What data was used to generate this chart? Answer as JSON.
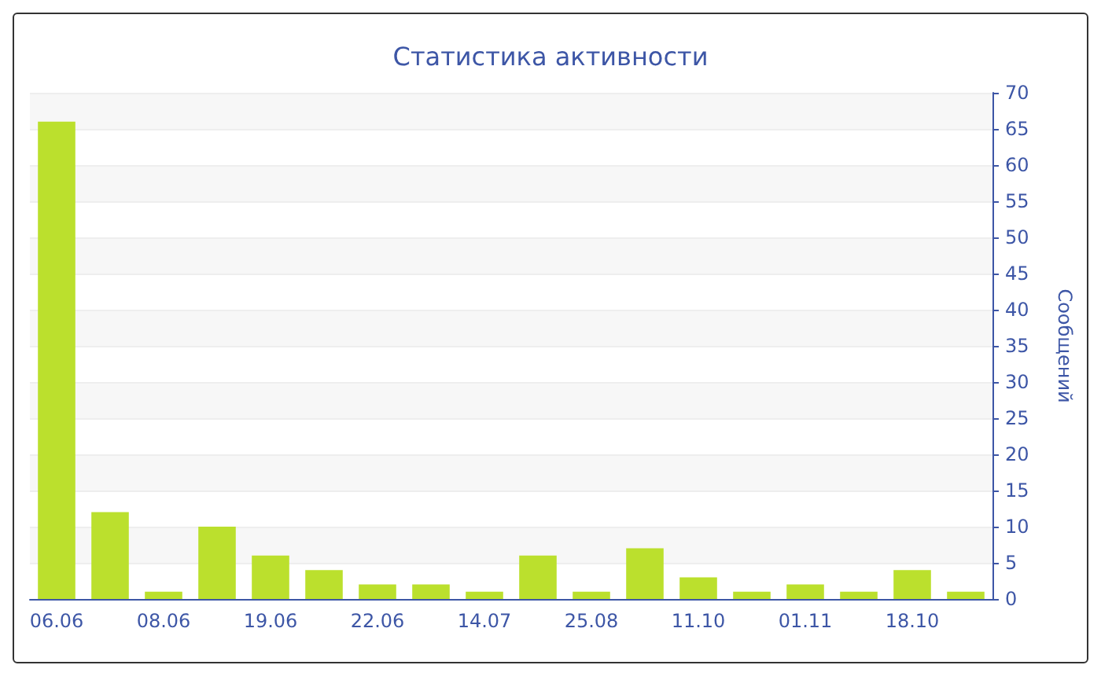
{
  "chart_data": {
    "type": "bar",
    "title": "Статистика активности",
    "ylabel": "Сообщений",
    "categories": [
      "06.06",
      null,
      "08.06",
      null,
      "19.06",
      null,
      "22.06",
      null,
      "14.07",
      null,
      "25.08",
      null,
      "11.10",
      null,
      "01.11",
      null,
      "18.10",
      null
    ],
    "values": [
      66,
      12,
      1,
      10,
      6,
      4,
      2,
      2,
      1,
      6,
      1,
      7,
      3,
      1,
      2,
      1,
      4,
      1
    ],
    "color": "#bbe02d",
    "ylim": [
      0,
      70
    ],
    "yticks": [
      0,
      5,
      10,
      15,
      20,
      25,
      30,
      35,
      40,
      45,
      50,
      55,
      60,
      65,
      70
    ],
    "grid": "y"
  }
}
